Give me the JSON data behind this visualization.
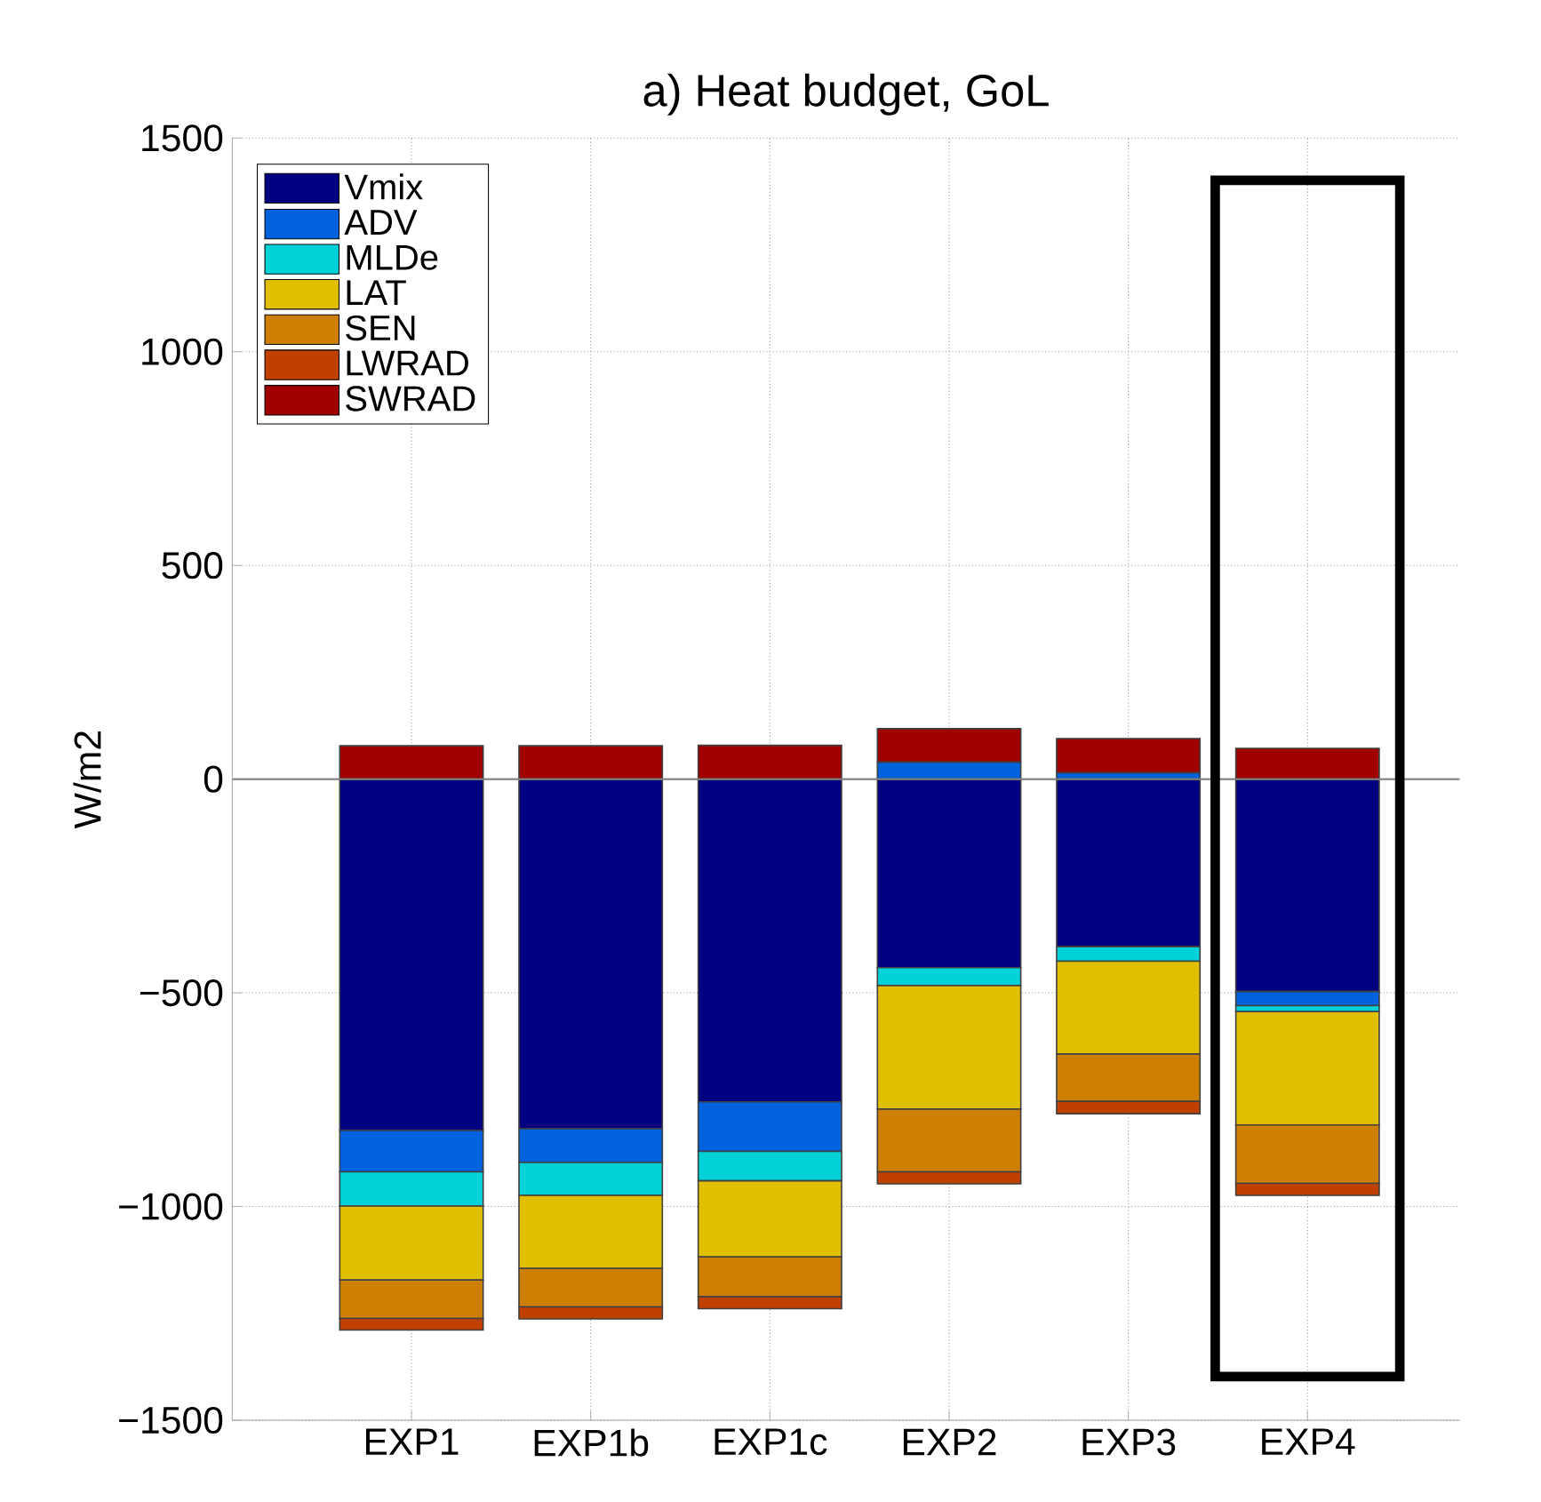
{
  "chart_data": {
    "type": "bar",
    "stacked": true,
    "title": "a) Heat budget, GoL",
    "ylabel": "W/m2",
    "categories": [
      "EXP1",
      "EXP1b",
      "EXP1c",
      "EXP2",
      "EXP3",
      "EXP4"
    ],
    "series": [
      {
        "name": "Vmix",
        "color": "#000080",
        "values": [
          -822,
          -818,
          -755,
          -441,
          -392,
          -497
        ]
      },
      {
        "name": "ADV",
        "color": "#0062dd",
        "values": [
          -97,
          -79,
          -116,
          40,
          15,
          -33
        ]
      },
      {
        "name": "MLDe",
        "color": "#00d2d8",
        "values": [
          -80,
          -77,
          -69,
          -42,
          -34,
          -14
        ]
      },
      {
        "name": "LAT",
        "color": "#e0bf00",
        "values": [
          -173,
          -171,
          -178,
          -289,
          -217,
          -265
        ]
      },
      {
        "name": "SEN",
        "color": "#cf7f00",
        "values": [
          -90,
          -90,
          -93,
          -147,
          -111,
          -137
        ]
      },
      {
        "name": "LWRAD",
        "color": "#c04000",
        "values": [
          -27,
          -28,
          -28,
          -28,
          -29,
          -28
        ]
      },
      {
        "name": "SWRAD",
        "color": "#a00000",
        "values": [
          78,
          78,
          79,
          78,
          80,
          72
        ]
      }
    ],
    "ylim": [
      -1500,
      1500
    ],
    "yticks": [
      {
        "value": -1500,
        "label": "−1500"
      },
      {
        "value": -1000,
        "label": "−1000"
      },
      {
        "value": -500,
        "label": "−500"
      },
      0,
      500,
      1000,
      1500
    ],
    "ref_lines": [
      {
        "axis": "y",
        "value": 0,
        "color": "#808080"
      }
    ],
    "grid": true,
    "legend": "top left"
  }
}
